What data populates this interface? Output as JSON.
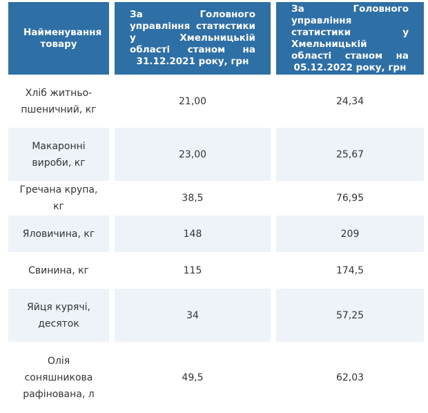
{
  "table": {
    "header": [
      "Найменування товару",
      "За Головного управління статистики у Хмельницькій області станом на 31.12.2021 року, грн",
      "За Головного управління статистики у Хмельницькій області станом на 05.12.2022 року, грн"
    ],
    "rows": [
      [
        "Хліб житньо-пшеничний, кг",
        "21,00",
        "24,34"
      ],
      [
        "Макаронні вироби, кг",
        "23,00",
        "25,67"
      ],
      [
        "Гречана крупа, кг",
        "38,5",
        "76,95"
      ],
      [
        "Яловичина, кг",
        "148",
        "209"
      ],
      [
        "Свинина, кг",
        "115",
        "174,5"
      ],
      [
        "Яйця курячі, десяток",
        "34",
        "57,25"
      ],
      [
        "Олія соняшникова рафінована, л",
        "49,5",
        "62,03"
      ]
    ]
  }
}
